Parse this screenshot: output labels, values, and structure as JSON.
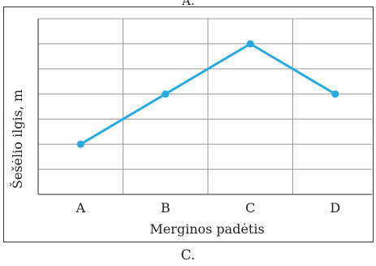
{
  "top_label": "A.",
  "caption": "C.",
  "chart_data": {
    "type": "line",
    "categories": [
      "A",
      "B",
      "C",
      "D"
    ],
    "series": [
      {
        "values": [
          2,
          4,
          6,
          4
        ]
      }
    ],
    "xlabel": "Merginos padėtis",
    "ylabel": "Šešėlio ilgis, m",
    "ylim": [
      0,
      7
    ],
    "grid": true,
    "line_color": "#29abe2"
  }
}
